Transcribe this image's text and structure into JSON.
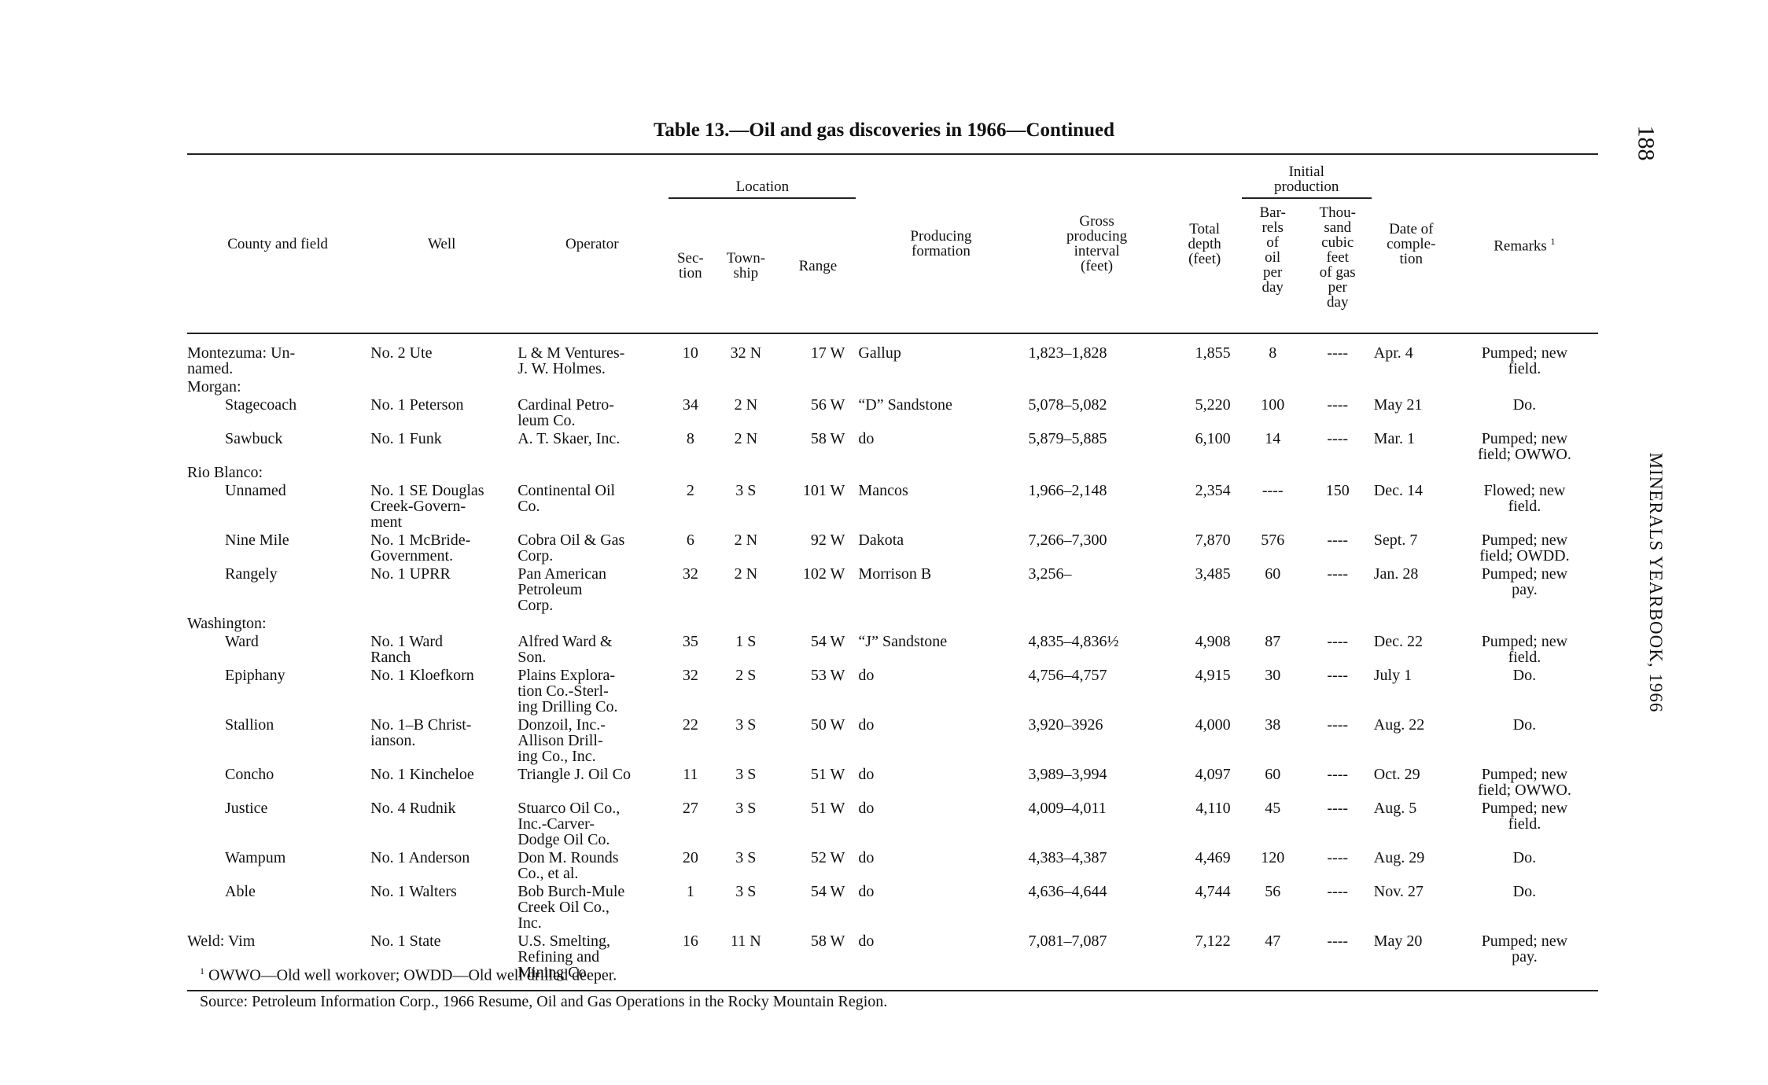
{
  "header": {
    "page_number": "188",
    "running_head": "MINERALS YEARBOOK, 1966",
    "title": "Table 13.—Oil and gas discoveries in 1966—Continued"
  },
  "table": {
    "columns": {
      "county": "County and field",
      "well": "Well",
      "operator": "Operator",
      "location": "Location",
      "section": "Sec-\ntion",
      "township": "Town-\nship",
      "range": "Range",
      "formation": "Producing\nformation",
      "interval": "Gross\nproducing\ninterval\n(feet)",
      "depth": "Total\ndepth\n(feet)",
      "initial": "Initial\nproduction",
      "barrels": "Bar-\nrels\nof\noil\nper\nday",
      "gas": "Thou-\nsand\ncubic\nfeet\nof gas\nper\nday",
      "date": "Date of\ncomple-\ntion",
      "remarks": "Remarks",
      "remarks_note": "1"
    },
    "rows": [
      [
        "Montezuma: Un-\nnamed.",
        "No. 2 Ute",
        "L & M Ventures-\nJ. W. Holmes.",
        "10",
        "32 N",
        "17 W",
        "Gallup",
        "1,823–1,828",
        "1,855",
        "8",
        "----",
        "Apr. 4",
        "Pumped; new\nfield."
      ],
      [
        "Morgan:"
      ],
      [
        "Stagecoach",
        "No. 1 Peterson",
        "Cardinal Petro-\nleum Co.",
        "34",
        "2 N",
        "56 W",
        "“D” Sandstone",
        "5,078–5,082",
        "5,220",
        "100",
        "----",
        "May 21",
        "Do."
      ],
      [
        "Sawbuck",
        "No. 1 Funk",
        "A. T. Skaer, Inc.",
        "8",
        "2 N",
        "58 W",
        "do",
        "5,879–5,885",
        "6,100",
        "14",
        "----",
        "Mar. 1",
        "Pumped; new\nfield; OWWO."
      ],
      [
        "Rio Blanco:"
      ],
      [
        "Unnamed",
        "No. 1 SE Douglas\nCreek-Govern-\nment",
        "Continental Oil\nCo.",
        "2",
        "3 S",
        "101 W",
        "Mancos",
        "1,966–2,148",
        "2,354",
        "----",
        "150",
        "Dec. 14",
        "Flowed; new\nfield."
      ],
      [
        "Nine Mile",
        "No. 1 McBride-\nGovernment.",
        "Cobra Oil & Gas\nCorp.",
        "6",
        "2 N",
        "92 W",
        "Dakota",
        "7,266–7,300",
        "7,870",
        "576",
        "----",
        "Sept. 7",
        "Pumped; new\nfield; OWDD."
      ],
      [
        "Rangely",
        "No. 1 UPRR",
        "Pan American\nPetroleum\nCorp.",
        "32",
        "2 N",
        "102 W",
        "Morrison B",
        "3,256–",
        "3,485",
        "60",
        "----",
        "Jan. 28",
        "Pumped; new\npay."
      ],
      [
        "Washington:"
      ],
      [
        "Ward",
        "No. 1 Ward\nRanch",
        "Alfred Ward &\nSon.",
        "35",
        "1 S",
        "54 W",
        "“J” Sandstone",
        "4,835–4,836½",
        "4,908",
        "87",
        "----",
        "Dec. 22",
        "Pumped; new\nfield."
      ],
      [
        "Epiphany",
        "No. 1 Kloefkorn",
        "Plains Explora-\ntion Co.-Sterl-\ning Drilling Co.",
        "32",
        "2 S",
        "53 W",
        "do",
        "4,756–4,757",
        "4,915",
        "30",
        "----",
        "July 1",
        "Do."
      ],
      [
        "Stallion",
        "No. 1–B Christ-\nianson.",
        "Donzoil, Inc.-\nAllison Drill-\ning Co., Inc.",
        "22",
        "3 S",
        "50 W",
        "do",
        "3,920–3926",
        "4,000",
        "38",
        "----",
        "Aug. 22",
        "Do."
      ],
      [
        "Concho",
        "No. 1 Kincheloe",
        "Triangle J. Oil Co",
        "11",
        "3 S",
        "51 W",
        "do",
        "3,989–3,994",
        "4,097",
        "60",
        "----",
        "Oct. 29",
        "Pumped; new\nfield; OWWO."
      ],
      [
        "Justice",
        "No. 4 Rudnik",
        "Stuarco Oil Co.,\nInc.-Carver-\nDodge Oil Co.",
        "27",
        "3 S",
        "51 W",
        "do",
        "4,009–4,011",
        "4,110",
        "45",
        "----",
        "Aug. 5",
        "Pumped; new\nfield."
      ],
      [
        "Wampum",
        "No. 1 Anderson",
        "Don M. Rounds\nCo., et al.",
        "20",
        "3 S",
        "52 W",
        "do",
        "4,383–4,387",
        "4,469",
        "120",
        "----",
        "Aug. 29",
        "Do."
      ],
      [
        "Able",
        "No. 1 Walters",
        "Bob Burch-Mule\nCreek Oil Co.,\nInc.",
        "1",
        "3 S",
        "54 W",
        "do",
        "4,636–4,644",
        "4,744",
        "56",
        "----",
        "Nov. 27",
        "Do."
      ],
      [
        "Weld: Vim",
        "No. 1 State",
        "U.S. Smelting,\nRefining and\nMining Co.",
        "16",
        "11 N",
        "58 W",
        "do",
        "7,081–7,087",
        "7,122",
        "47",
        "----",
        "May 20",
        "Pumped; new\npay."
      ]
    ]
  },
  "footnotes": {
    "note_mark": "1",
    "note": "OWWO—Old well workover; OWDD—Old well drilled deeper.",
    "source": "Source:  Petroleum Information Corp., 1966 Resume, Oil and Gas Operations in the Rocky Mountain Region."
  }
}
